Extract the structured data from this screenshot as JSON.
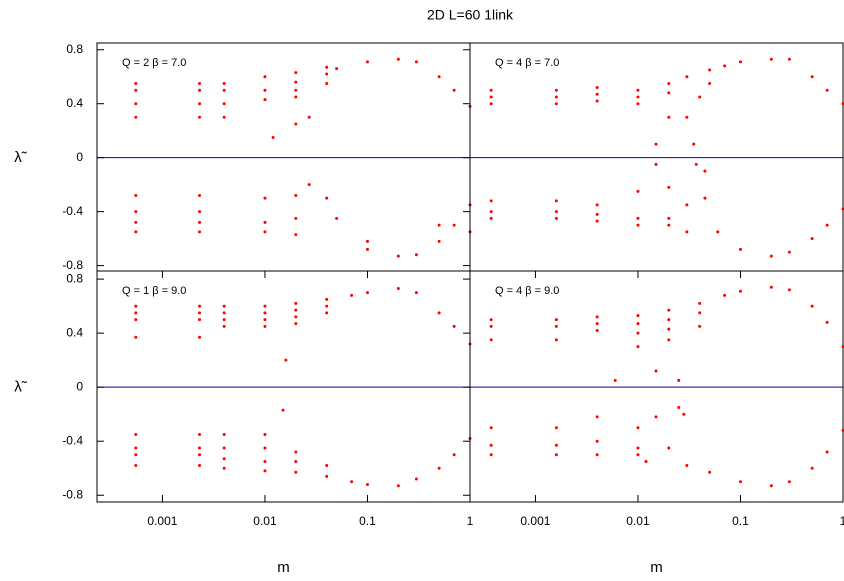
{
  "title": "2D  L=60  1link",
  "chart_data": [
    {
      "type": "scatter",
      "annotation": "Q = 2   β = 7.0",
      "ylabel": "λ̃",
      "log_x": true,
      "color": "#ff0000",
      "hlines": [
        0
      ],
      "hline_color": "#0000bb",
      "xlim": [
        0.00023,
        1
      ],
      "ylim": [
        -0.84,
        0.85
      ],
      "yticks": [
        0.8,
        0.4,
        0,
        -0.4,
        -0.8
      ],
      "x": [
        0.00055,
        0.00055,
        0.00055,
        0.00055,
        0.00055,
        0.00055,
        0.00055,
        0.00055,
        0.0023,
        0.0023,
        0.0023,
        0.0023,
        0.0023,
        0.0023,
        0.0023,
        0.0023,
        0.004,
        0.004,
        0.004,
        0.004,
        0.01,
        0.01,
        0.01,
        0.012,
        0.02,
        0.02,
        0.02,
        0.02,
        0.02,
        0.027,
        0.04,
        0.04,
        0.04,
        0.05,
        0.1,
        0.2,
        0.3,
        0.5,
        0.7,
        1,
        0.01,
        0.01,
        0.01,
        0.02,
        0.02,
        0.02,
        0.027,
        0.04,
        0.05,
        0.1,
        0.1,
        0.2,
        0.3,
        0.5,
        0.5,
        0.7,
        1,
        1
      ],
      "values": [
        0.55,
        0.5,
        0.4,
        0.3,
        -0.28,
        -0.4,
        -0.48,
        -0.55,
        0.55,
        0.5,
        0.4,
        0.3,
        -0.28,
        -0.4,
        -0.48,
        -0.55,
        0.55,
        0.5,
        0.4,
        0.3,
        0.6,
        0.5,
        0.43,
        0.15,
        0.63,
        0.56,
        0.5,
        0.45,
        0.25,
        0.3,
        0.67,
        0.62,
        0.55,
        0.66,
        0.71,
        0.73,
        0.71,
        0.6,
        0.5,
        0.38,
        -0.3,
        -0.48,
        -0.55,
        -0.28,
        -0.45,
        -0.57,
        -0.2,
        -0.3,
        -0.45,
        -0.62,
        -0.68,
        -0.73,
        -0.72,
        -0.62,
        -0.5,
        -0.5,
        -0.35,
        -0.55
      ]
    },
    {
      "type": "scatter",
      "annotation": "Q = 4   β = 7.0",
      "log_x": true,
      "color": "#ff0000",
      "hlines": [
        0
      ],
      "hline_color": "#0000bb",
      "xlim": [
        0.00023,
        1
      ],
      "ylim": [
        -0.84,
        0.85
      ],
      "x": [
        0.00037,
        0.00037,
        0.00037,
        0.00037,
        0.00037,
        0.00037,
        0.0016,
        0.0016,
        0.0016,
        0.0016,
        0.0016,
        0.0016,
        0.004,
        0.004,
        0.004,
        0.004,
        0.004,
        0.004,
        0.01,
        0.01,
        0.01,
        0.015,
        0.02,
        0.02,
        0.02,
        0.03,
        0.03,
        0.035,
        0.04,
        0.05,
        0.05,
        0.07,
        0.1,
        0.2,
        0.3,
        0.5,
        0.7,
        1,
        0.01,
        0.01,
        0.01,
        0.015,
        0.02,
        0.02,
        0.02,
        0.03,
        0.03,
        0.037,
        0.045,
        0.045,
        0.06,
        0.1,
        0.2,
        0.3,
        0.5,
        0.7,
        1
      ],
      "values": [
        0.5,
        0.45,
        0.4,
        -0.32,
        -0.4,
        -0.45,
        0.5,
        0.45,
        0.4,
        -0.32,
        -0.4,
        -0.45,
        0.52,
        0.47,
        0.42,
        -0.35,
        -0.42,
        -0.47,
        0.5,
        0.45,
        0.4,
        0.1,
        0.55,
        0.48,
        0.3,
        0.6,
        0.3,
        0.1,
        0.45,
        0.65,
        0.55,
        0.68,
        0.71,
        0.73,
        0.73,
        0.6,
        0.5,
        0.4,
        -0.25,
        -0.45,
        -0.5,
        -0.05,
        -0.22,
        -0.45,
        -0.5,
        -0.35,
        -0.55,
        -0.05,
        -0.1,
        -0.3,
        -0.55,
        -0.68,
        -0.73,
        -0.7,
        -0.6,
        -0.5,
        -0.38
      ]
    },
    {
      "type": "scatter",
      "annotation": "Q = 1   β = 9.0",
      "ylabel": "λ̃",
      "xlabel": "m",
      "log_x": true,
      "color": "#ff0000",
      "hlines": [
        0
      ],
      "hline_color": "#0000bb",
      "xlim": [
        0.00023,
        1
      ],
      "ylim": [
        -0.85,
        0.86
      ],
      "yticks": [
        0.8,
        0.4,
        0,
        -0.4,
        -0.8
      ],
      "xticks": [
        0.001,
        0.01,
        0.1,
        1
      ],
      "x": [
        0.00055,
        0.00055,
        0.00055,
        0.00055,
        0.00055,
        0.00055,
        0.00055,
        0.00055,
        0.0023,
        0.0023,
        0.0023,
        0.0023,
        0.0023,
        0.0023,
        0.0023,
        0.0023,
        0.004,
        0.004,
        0.004,
        0.004,
        0.004,
        0.004,
        0.004,
        0.004,
        0.01,
        0.01,
        0.01,
        0.01,
        0.016,
        0.02,
        0.02,
        0.02,
        0.02,
        0.04,
        0.04,
        0.04,
        0.07,
        0.1,
        0.2,
        0.3,
        0.5,
        0.7,
        1,
        0.01,
        0.01,
        0.01,
        0.01,
        0.015,
        0.02,
        0.02,
        0.02,
        0.04,
        0.04,
        0.07,
        0.1,
        0.2,
        0.3,
        0.5,
        0.7,
        1
      ],
      "values": [
        0.6,
        0.55,
        0.5,
        0.37,
        -0.35,
        -0.45,
        -0.5,
        -0.58,
        0.6,
        0.55,
        0.5,
        0.37,
        -0.35,
        -0.45,
        -0.5,
        -0.58,
        0.6,
        0.55,
        0.5,
        0.45,
        -0.35,
        -0.45,
        -0.53,
        -0.6,
        0.6,
        0.55,
        0.5,
        0.45,
        0.2,
        0.62,
        0.57,
        0.52,
        0.47,
        0.65,
        0.6,
        0.55,
        0.68,
        0.7,
        0.73,
        0.7,
        0.55,
        0.45,
        0.32,
        -0.35,
        -0.45,
        -0.55,
        -0.62,
        -0.17,
        -0.48,
        -0.55,
        -0.63,
        -0.58,
        -0.66,
        -0.7,
        -0.72,
        -0.73,
        -0.68,
        -0.6,
        -0.5,
        -0.38
      ]
    },
    {
      "type": "scatter",
      "annotation": "Q = 4   β = 9.0",
      "xlabel": "m",
      "log_x": true,
      "color": "#ff0000",
      "hlines": [
        0
      ],
      "hline_color": "#0000bb",
      "xlim": [
        0.00023,
        1
      ],
      "ylim": [
        -0.85,
        0.86
      ],
      "xticks": [
        0.001,
        0.01,
        0.1,
        1
      ],
      "x": [
        0.00037,
        0.00037,
        0.00037,
        0.00037,
        0.00037,
        0.00037,
        0.0016,
        0.0016,
        0.0016,
        0.0016,
        0.0016,
        0.0016,
        0.004,
        0.004,
        0.004,
        0.004,
        0.004,
        0.004,
        0.01,
        0.01,
        0.01,
        0.01,
        0.006,
        0.015,
        0.02,
        0.02,
        0.02,
        0.02,
        0.025,
        0.04,
        0.04,
        0.04,
        0.07,
        0.1,
        0.2,
        0.3,
        0.5,
        0.7,
        1,
        0.01,
        0.01,
        0.01,
        0.015,
        0.02,
        0.025,
        0.028,
        0.012,
        0.03,
        0.05,
        0.1,
        0.2,
        0.3,
        0.5,
        0.7,
        1
      ],
      "values": [
        0.5,
        0.45,
        0.35,
        -0.3,
        -0.43,
        -0.5,
        0.5,
        0.45,
        0.35,
        -0.3,
        -0.43,
        -0.5,
        0.52,
        0.47,
        0.42,
        -0.22,
        -0.4,
        -0.5,
        0.53,
        0.47,
        0.4,
        0.3,
        0.05,
        0.12,
        0.57,
        0.5,
        0.43,
        0.35,
        0.05,
        0.62,
        0.55,
        0.45,
        0.68,
        0.71,
        0.74,
        0.72,
        0.6,
        0.48,
        0.3,
        -0.3,
        -0.45,
        -0.5,
        -0.22,
        -0.45,
        -0.15,
        -0.2,
        -0.55,
        -0.58,
        -0.63,
        -0.7,
        -0.73,
        -0.7,
        -0.6,
        -0.48,
        -0.32
      ]
    }
  ]
}
